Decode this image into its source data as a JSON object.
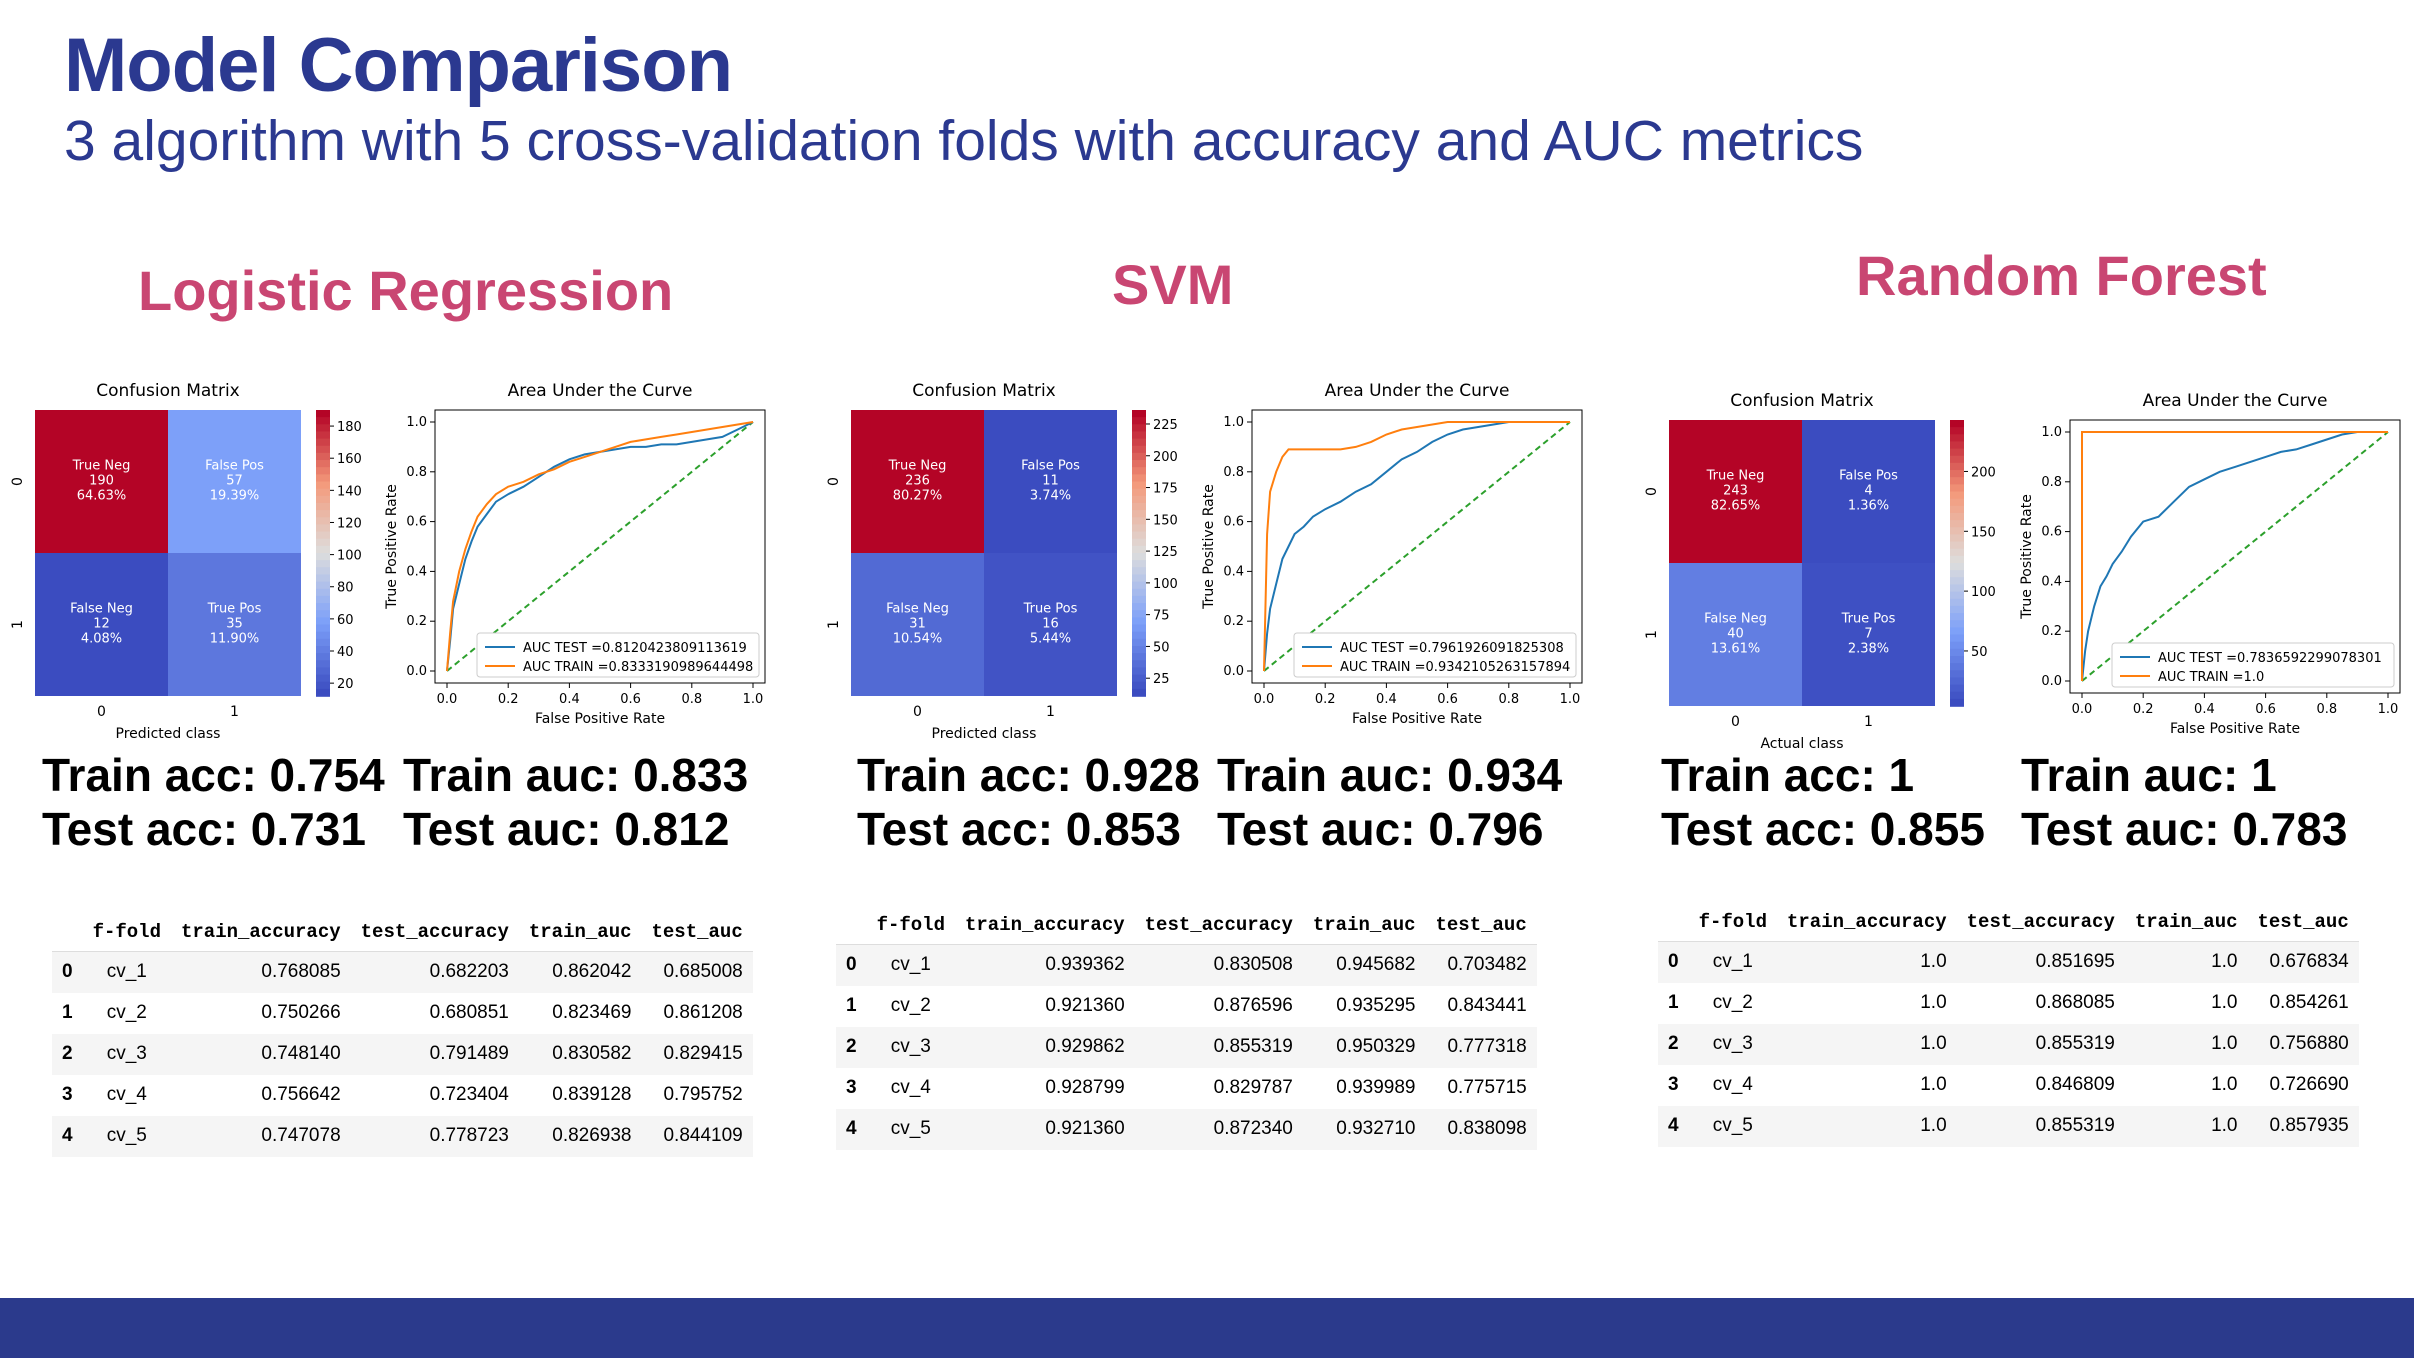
{
  "header": {
    "title": "Model Comparison",
    "subtitle": "3 algorithm with 5 cross-validation folds with accuracy and AUC metrics"
  },
  "colors": {
    "title": "#2b3990",
    "model_title": "#c94672",
    "footer": "#2b3a8c",
    "roc_test": "#1f77b4",
    "roc_train": "#ff7f0e",
    "diagonal": "#2ca02c"
  },
  "table_headers": [
    "",
    "f-fold",
    "train_accuracy",
    "test_accuracy",
    "train_auc",
    "test_auc"
  ],
  "models": [
    {
      "name": "Logistic Regression",
      "metrics": {
        "train_acc": "Train acc: 0.754",
        "test_acc": "Test acc: 0.731",
        "train_auc": "Train auc: 0.833",
        "test_auc": "Test auc: 0.812"
      },
      "cv_rows": [
        [
          "0",
          "cv_1",
          "0.768085",
          "0.682203",
          "0.862042",
          "0.685008"
        ],
        [
          "1",
          "cv_2",
          "0.750266",
          "0.680851",
          "0.823469",
          "0.861208"
        ],
        [
          "2",
          "cv_3",
          "0.748140",
          "0.791489",
          "0.830582",
          "0.829415"
        ],
        [
          "3",
          "cv_4",
          "0.756642",
          "0.723404",
          "0.839128",
          "0.795752"
        ],
        [
          "4",
          "cv_5",
          "0.747078",
          "0.778723",
          "0.826938",
          "0.844109"
        ]
      ]
    },
    {
      "name": "SVM",
      "metrics": {
        "train_acc": "Train acc: 0.928",
        "test_acc": "Test acc: 0.853",
        "train_auc": "Train auc: 0.934",
        "test_auc": "Test auc: 0.796"
      },
      "cv_rows": [
        [
          "0",
          "cv_1",
          "0.939362",
          "0.830508",
          "0.945682",
          "0.703482"
        ],
        [
          "1",
          "cv_2",
          "0.921360",
          "0.876596",
          "0.935295",
          "0.843441"
        ],
        [
          "2",
          "cv_3",
          "0.929862",
          "0.855319",
          "0.950329",
          "0.777318"
        ],
        [
          "3",
          "cv_4",
          "0.928799",
          "0.829787",
          "0.939989",
          "0.775715"
        ],
        [
          "4",
          "cv_5",
          "0.921360",
          "0.872340",
          "0.932710",
          "0.838098"
        ]
      ]
    },
    {
      "name": "Random Forest",
      "metrics": {
        "train_acc": "Train acc: 1",
        "test_acc": "Test acc: 0.855",
        "train_auc": "Train auc: 1",
        "test_auc": "Test auc: 0.783"
      },
      "cv_rows": [
        [
          "0",
          "cv_1",
          "1.0",
          "0.851695",
          "1.0",
          "0.676834"
        ],
        [
          "1",
          "cv_2",
          "1.0",
          "0.868085",
          "1.0",
          "0.854261"
        ],
        [
          "2",
          "cv_3",
          "1.0",
          "0.855319",
          "1.0",
          "0.756880"
        ],
        [
          "3",
          "cv_4",
          "1.0",
          "0.846809",
          "1.0",
          "0.726690"
        ],
        [
          "4",
          "cv_5",
          "1.0",
          "0.855319",
          "1.0",
          "0.857935"
        ]
      ]
    }
  ],
  "chart_data": [
    {
      "type": "heatmap",
      "title": "Confusion Matrix",
      "xlabel": "Predicted class",
      "ylabel": "",
      "x_ticks": [
        "0",
        "1"
      ],
      "y_ticks": [
        "0",
        "1"
      ],
      "cells": [
        [
          {
            "label": "True Neg",
            "count": "190",
            "pct": "64.63%",
            "value": 190
          },
          {
            "label": "False Pos",
            "count": "57",
            "pct": "19.39%",
            "value": 57
          }
        ],
        [
          {
            "label": "False Neg",
            "count": "12",
            "pct": "4.08%",
            "value": 12
          },
          {
            "label": "True Pos",
            "count": "35",
            "pct": "11.90%",
            "value": 35
          }
        ]
      ],
      "colorbar_ticks": [
        20,
        40,
        60,
        80,
        100,
        120,
        140,
        160,
        180
      ],
      "vmin": 12,
      "vmax": 190
    },
    {
      "type": "line",
      "title": "Area Under the Curve",
      "xlabel": "False Positive Rate",
      "ylabel": "True Positive Rate",
      "xlim": [
        0,
        1
      ],
      "ylim": [
        0,
        1
      ],
      "x_ticks": [
        0.0,
        0.2,
        0.4,
        0.6,
        0.8,
        1.0
      ],
      "y_ticks": [
        0.0,
        0.2,
        0.4,
        0.6,
        0.8,
        1.0
      ],
      "legend": "lower-right",
      "series": [
        {
          "name": "AUC TEST =0.8120423809113619",
          "x": [
            0,
            0.01,
            0.02,
            0.04,
            0.06,
            0.08,
            0.1,
            0.13,
            0.16,
            0.2,
            0.25,
            0.3,
            0.35,
            0.4,
            0.45,
            0.5,
            0.55,
            0.6,
            0.65,
            0.7,
            0.75,
            0.8,
            0.85,
            0.9,
            0.95,
            1.0
          ],
          "y": [
            0,
            0.12,
            0.25,
            0.35,
            0.45,
            0.52,
            0.58,
            0.63,
            0.68,
            0.71,
            0.74,
            0.78,
            0.82,
            0.85,
            0.87,
            0.88,
            0.89,
            0.9,
            0.9,
            0.91,
            0.91,
            0.92,
            0.93,
            0.94,
            0.97,
            1.0
          ]
        },
        {
          "name": "AUC TRAIN =0.8333190989644498",
          "x": [
            0,
            0.01,
            0.02,
            0.04,
            0.06,
            0.08,
            0.1,
            0.13,
            0.16,
            0.2,
            0.25,
            0.3,
            0.35,
            0.4,
            0.45,
            0.5,
            0.55,
            0.6,
            0.65,
            0.7,
            0.75,
            0.8,
            0.85,
            0.9,
            0.95,
            1.0
          ],
          "y": [
            0,
            0.15,
            0.28,
            0.4,
            0.49,
            0.56,
            0.62,
            0.67,
            0.71,
            0.74,
            0.76,
            0.79,
            0.81,
            0.84,
            0.86,
            0.88,
            0.9,
            0.92,
            0.93,
            0.94,
            0.95,
            0.96,
            0.97,
            0.98,
            0.99,
            1.0
          ]
        }
      ]
    },
    {
      "type": "heatmap",
      "title": "Confusion Matrix",
      "xlabel": "Predicted class",
      "ylabel": "",
      "x_ticks": [
        "0",
        "1"
      ],
      "y_ticks": [
        "0",
        "1"
      ],
      "cells": [
        [
          {
            "label": "True Neg",
            "count": "236",
            "pct": "80.27%",
            "value": 236
          },
          {
            "label": "False Pos",
            "count": "11",
            "pct": "3.74%",
            "value": 11
          }
        ],
        [
          {
            "label": "False Neg",
            "count": "31",
            "pct": "10.54%",
            "value": 31
          },
          {
            "label": "True Pos",
            "count": "16",
            "pct": "5.44%",
            "value": 16
          }
        ]
      ],
      "colorbar_ticks": [
        25,
        50,
        75,
        100,
        125,
        150,
        175,
        200,
        225
      ],
      "vmin": 11,
      "vmax": 236
    },
    {
      "type": "line",
      "title": "Area Under the Curve",
      "xlabel": "False Positive Rate",
      "ylabel": "True Positive Rate",
      "xlim": [
        0,
        1
      ],
      "ylim": [
        0,
        1
      ],
      "x_ticks": [
        0.0,
        0.2,
        0.4,
        0.6,
        0.8,
        1.0
      ],
      "y_ticks": [
        0.0,
        0.2,
        0.4,
        0.6,
        0.8,
        1.0
      ],
      "legend": "lower-right",
      "series": [
        {
          "name": "AUC TEST =0.7961926091825308",
          "x": [
            0,
            0.01,
            0.02,
            0.04,
            0.06,
            0.08,
            0.1,
            0.13,
            0.16,
            0.2,
            0.25,
            0.3,
            0.35,
            0.4,
            0.45,
            0.5,
            0.55,
            0.6,
            0.65,
            0.7,
            0.75,
            0.8,
            0.85,
            0.9,
            0.95,
            1.0
          ],
          "y": [
            0,
            0.15,
            0.25,
            0.35,
            0.45,
            0.5,
            0.55,
            0.58,
            0.62,
            0.65,
            0.68,
            0.72,
            0.75,
            0.8,
            0.85,
            0.88,
            0.92,
            0.95,
            0.97,
            0.98,
            0.99,
            1.0,
            1.0,
            1.0,
            1.0,
            1.0
          ]
        },
        {
          "name": "AUC TRAIN =0.9342105263157894",
          "x": [
            0,
            0.01,
            0.02,
            0.04,
            0.06,
            0.08,
            0.1,
            0.13,
            0.16,
            0.2,
            0.25,
            0.3,
            0.35,
            0.4,
            0.45,
            0.5,
            0.55,
            0.6,
            0.65,
            0.7,
            0.75,
            0.8,
            0.85,
            0.9,
            0.95,
            1.0
          ],
          "y": [
            0,
            0.55,
            0.72,
            0.8,
            0.86,
            0.89,
            0.89,
            0.89,
            0.89,
            0.89,
            0.89,
            0.9,
            0.92,
            0.95,
            0.97,
            0.98,
            0.99,
            1.0,
            1.0,
            1.0,
            1.0,
            1.0,
            1.0,
            1.0,
            1.0,
            1.0
          ]
        }
      ]
    },
    {
      "type": "heatmap",
      "title": "Confusion Matrix",
      "xlabel": "Actual class",
      "ylabel": "",
      "x_ticks": [
        "0",
        "1"
      ],
      "y_ticks": [
        "0",
        "1"
      ],
      "cells": [
        [
          {
            "label": "True Neg",
            "count": "243",
            "pct": "82.65%",
            "value": 243
          },
          {
            "label": "False Pos",
            "count": "4",
            "pct": "1.36%",
            "value": 4
          }
        ],
        [
          {
            "label": "False Neg",
            "count": "40",
            "pct": "13.61%",
            "value": 40
          },
          {
            "label": "True Pos",
            "count": "7",
            "pct": "2.38%",
            "value": 7
          }
        ]
      ],
      "colorbar_ticks": [
        50,
        100,
        150,
        200
      ],
      "vmin": 4,
      "vmax": 243
    },
    {
      "type": "line",
      "title": "Area Under the Curve",
      "xlabel": "False Positive Rate",
      "ylabel": "True Positive Rate",
      "xlim": [
        0,
        1
      ],
      "ylim": [
        0,
        1
      ],
      "x_ticks": [
        0.0,
        0.2,
        0.4,
        0.6,
        0.8,
        1.0
      ],
      "y_ticks": [
        0.0,
        0.2,
        0.4,
        0.6,
        0.8,
        1.0
      ],
      "legend": "lower-right",
      "series": [
        {
          "name": "AUC TEST =0.7836592299078301",
          "x": [
            0,
            0.01,
            0.02,
            0.04,
            0.06,
            0.08,
            0.1,
            0.13,
            0.16,
            0.2,
            0.25,
            0.3,
            0.35,
            0.4,
            0.45,
            0.5,
            0.55,
            0.6,
            0.65,
            0.7,
            0.75,
            0.8,
            0.85,
            0.9,
            0.95,
            1.0
          ],
          "y": [
            0,
            0.12,
            0.2,
            0.3,
            0.38,
            0.42,
            0.47,
            0.52,
            0.58,
            0.64,
            0.66,
            0.72,
            0.78,
            0.81,
            0.84,
            0.86,
            0.88,
            0.9,
            0.92,
            0.93,
            0.95,
            0.97,
            0.99,
            1.0,
            1.0,
            1.0
          ]
        },
        {
          "name": "AUC TRAIN =1.0",
          "x": [
            0,
            0.0,
            1.0
          ],
          "y": [
            0,
            1.0,
            1.0
          ]
        }
      ]
    }
  ]
}
